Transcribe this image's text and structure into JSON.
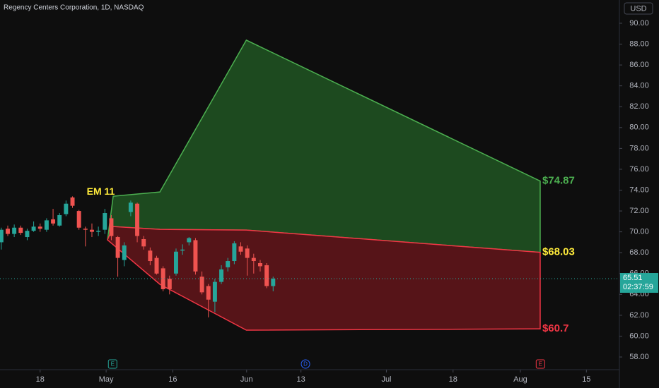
{
  "chart_data": {
    "type": "candlestick",
    "title": "Regency Centers Corporation, 1D, NASDAQ",
    "currency": "USD",
    "up_color": "#26a69a",
    "down_color": "#ef5350",
    "x": [
      0,
      1,
      2,
      3,
      4,
      5,
      6,
      7,
      8,
      9,
      10,
      11,
      12,
      13,
      14,
      15,
      16,
      17,
      18,
      19,
      20,
      21,
      22,
      23,
      24,
      25,
      26,
      27,
      28,
      29,
      30,
      31,
      32,
      33,
      34,
      35,
      36,
      37,
      38,
      39,
      40,
      41,
      42
    ],
    "open": [
      69.0,
      70.3,
      69.8,
      70.4,
      69.5,
      70.1,
      70.5,
      70.2,
      71.2,
      70.6,
      71.7,
      73.3,
      72.0,
      70.3,
      70.2,
      70.0,
      70.2,
      71.3,
      69.5,
      67.3,
      71.9,
      72.7,
      69.3,
      68.2,
      67.5,
      66.5,
      65.5,
      66.0,
      68.2,
      69.0,
      69.2,
      65.7,
      64.8,
      63.3,
      65.2,
      66.6,
      67.2,
      68.6,
      68.4,
      67.5,
      67.0,
      66.8,
      64.8
    ],
    "high": [
      70.4,
      70.6,
      70.7,
      70.6,
      70.3,
      71.0,
      70.8,
      71.3,
      72.2,
      71.8,
      73.0,
      73.4,
      72.1,
      70.5,
      70.8,
      70.5,
      72.2,
      71.6,
      69.6,
      69.0,
      73.0,
      72.8,
      69.6,
      68.5,
      67.7,
      66.7,
      65.8,
      68.4,
      68.8,
      69.5,
      69.4,
      66.2,
      65.0,
      65.5,
      66.8,
      67.5,
      69.1,
      69.0,
      68.7,
      67.9,
      67.3,
      67.0,
      65.7
    ],
    "low": [
      68.3,
      69.6,
      69.5,
      69.7,
      69.2,
      70.0,
      70.0,
      70.0,
      70.6,
      70.5,
      71.5,
      72.3,
      70.2,
      68.6,
      69.5,
      69.6,
      69.8,
      69.2,
      65.7,
      66.7,
      71.5,
      69.0,
      68.3,
      66.8,
      65.9,
      64.3,
      64.0,
      65.8,
      67.8,
      68.7,
      65.9,
      64.0,
      61.8,
      62.3,
      65.0,
      66.2,
      66.9,
      67.8,
      65.8,
      66.0,
      66.2,
      64.6,
      64.3
    ],
    "close": [
      70.2,
      69.8,
      70.4,
      69.9,
      70.1,
      70.5,
      70.3,
      71.1,
      70.8,
      71.6,
      72.7,
      72.5,
      70.4,
      70.2,
      70.0,
      70.1,
      71.8,
      69.6,
      67.5,
      68.7,
      72.8,
      69.6,
      68.6,
      67.2,
      66.0,
      64.5,
      64.5,
      68.1,
      68.3,
      69.4,
      66.2,
      64.2,
      63.5,
      65.2,
      66.4,
      67.2,
      68.9,
      68.1,
      67.5,
      67.2,
      66.7,
      64.8,
      65.51
    ],
    "last_price": {
      "value": 65.51,
      "label": "65.51"
    },
    "countdown": "02:37:59",
    "xlim": [
      -0.2,
      95.5
    ],
    "ylim": [
      56.92,
      92.23
    ],
    "xticks": [
      {
        "value": 6.0,
        "label": "18"
      },
      {
        "value": 16.2,
        "label": "May"
      },
      {
        "value": 26.5,
        "label": "16"
      },
      {
        "value": 37.9,
        "label": "Jun"
      },
      {
        "value": 46.3,
        "label": "13"
      },
      {
        "value": 59.5,
        "label": "Jul"
      },
      {
        "value": 69.8,
        "label": "18"
      },
      {
        "value": 80.2,
        "label": "Aug"
      },
      {
        "value": 90.4,
        "label": "15"
      }
    ],
    "yticks": [
      {
        "value": 58,
        "label": "58.00"
      },
      {
        "value": 60,
        "label": "60.00"
      },
      {
        "value": 62,
        "label": "62.00"
      },
      {
        "value": 64,
        "label": "64.00"
      },
      {
        "value": 66,
        "label": "66.00"
      },
      {
        "value": 68,
        "label": "68.00"
      },
      {
        "value": 70,
        "label": "70.00"
      },
      {
        "value": 72,
        "label": "72.00"
      },
      {
        "value": 74,
        "label": "74.00"
      },
      {
        "value": 76,
        "label": "76.00"
      },
      {
        "value": 78,
        "label": "78.00"
      },
      {
        "value": 80,
        "label": "80.00"
      },
      {
        "value": 82,
        "label": "82.00"
      },
      {
        "value": 84,
        "label": "84.00"
      },
      {
        "value": 86,
        "label": "86.00"
      },
      {
        "value": 88,
        "label": "88.00"
      },
      {
        "value": 90,
        "label": "90.00"
      }
    ],
    "zones": [
      {
        "fill": "#1d4a1f",
        "stroke": "#4caf50",
        "x": [
          17.29,
          24.5,
          37.86,
          83.26,
          83.26,
          37.86,
          24.5,
          17.29,
          16.41
        ],
        "y": [
          73.42,
          73.82,
          88.38,
          74.87,
          68.03,
          70.17,
          70.24,
          70.51,
          69.23
        ]
      },
      {
        "fill": "#561418",
        "stroke": "#f23645",
        "x": [
          16.41,
          17.29,
          24.5,
          37.86,
          83.26,
          83.26,
          37.86,
          24.5
        ],
        "y": [
          69.23,
          70.51,
          70.24,
          70.17,
          68.03,
          60.7,
          60.57,
          64.97
        ]
      }
    ],
    "levels": [
      {
        "value": 74.87,
        "label": "$74.87",
        "color": "#4caf50"
      },
      {
        "value": 68.03,
        "label": "$68.03",
        "color": "#ffeb3b"
      },
      {
        "value": 60.7,
        "label": "$60.7",
        "color": "#f23645"
      }
    ],
    "annotation": {
      "text": "EM 11",
      "x": 13.2,
      "y": 73.8,
      "color": "#ffeb3b"
    },
    "events": [
      {
        "x": 17.2,
        "label": "E",
        "color": "#26a69a",
        "shape": "square"
      },
      {
        "x": 47.0,
        "label": "D",
        "color": "#2962ff",
        "shape": "circle"
      },
      {
        "x": 83.3,
        "label": "E",
        "color": "#f23645",
        "shape": "square"
      }
    ]
  }
}
